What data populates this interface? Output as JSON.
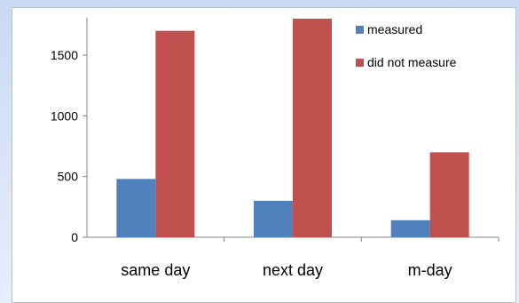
{
  "chart_data": {
    "type": "bar",
    "title": "",
    "xlabel": "",
    "ylabel": "",
    "categories": [
      "same day",
      "next day",
      "m-day"
    ],
    "series": [
      {
        "name": "measured",
        "values": [
          480,
          300,
          140
        ]
      },
      {
        "name": "did not measure",
        "values": [
          1700,
          1800,
          700
        ]
      }
    ],
    "ylim": [
      0,
      1800
    ],
    "yticks": [
      0,
      500,
      1000,
      1500
    ],
    "grid": false,
    "legend_position": "top-right",
    "colors": {
      "measured": "#4f81bd",
      "did not measure": "#c0504d"
    }
  }
}
